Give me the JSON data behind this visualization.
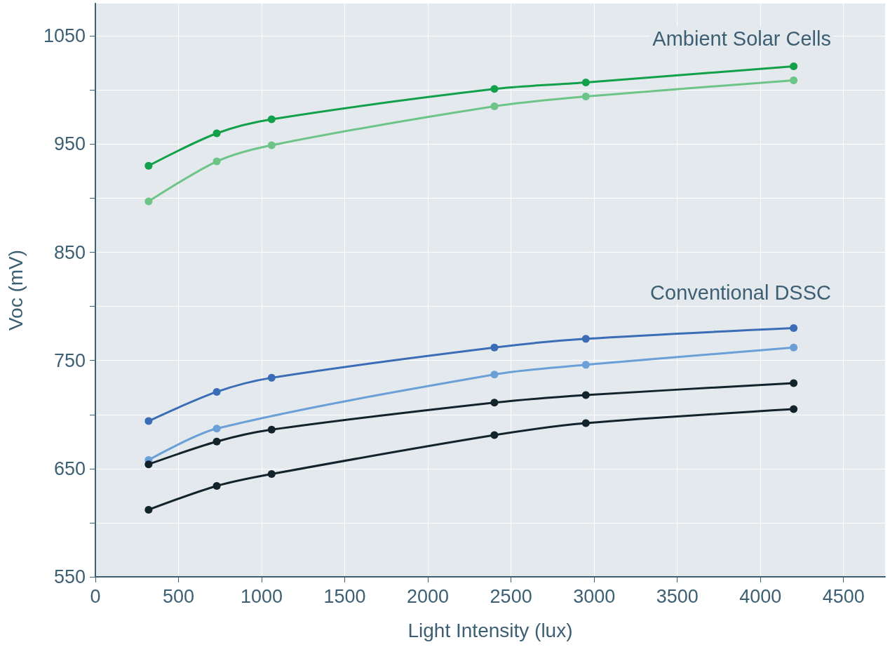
{
  "chart_data": {
    "type": "line",
    "xlabel": "Light Intensity (lux)",
    "ylabel": "Voc (mV)",
    "x": [
      320,
      730,
      1060,
      2400,
      2950,
      4200
    ],
    "series": [
      {
        "color": "#12a04a",
        "values": [
          930,
          960,
          973,
          1001,
          1007,
          1022
        ]
      },
      {
        "color": "#6cc487",
        "values": [
          897,
          934,
          949,
          985,
          994,
          1009
        ]
      },
      {
        "color": "#3a6db5",
        "values": [
          694,
          721,
          734,
          762,
          770,
          780
        ]
      },
      {
        "color": "#6a9fd8",
        "x": [
          320,
          730,
          2400,
          2950,
          4200
        ],
        "values": [
          658,
          687,
          737,
          746,
          762
        ]
      },
      {
        "color": "#13232b",
        "values": [
          654,
          675,
          686,
          711,
          718,
          729
        ]
      },
      {
        "color": "#13232b",
        "values": [
          612,
          634,
          645,
          681,
          692,
          705
        ]
      }
    ],
    "xlim": [
      0,
      4750
    ],
    "xticks": [
      0,
      500,
      1000,
      1500,
      2000,
      2500,
      3000,
      3500,
      4000,
      4500
    ],
    "ylim": [
      550,
      1080
    ],
    "yticks": [
      550,
      {
        "value": 600,
        "label": null
      },
      650,
      {
        "value": 700,
        "label": null
      },
      750,
      {
        "value": 800,
        "label": null
      },
      850,
      {
        "value": 900,
        "label": null
      },
      950,
      {
        "value": 1000,
        "label": null
      },
      1050
    ],
    "annotations": [
      "Ambient Solar Cells",
      "Conventional DSSC"
    ],
    "grid": true,
    "marker": "circle",
    "line_style": "solid"
  }
}
